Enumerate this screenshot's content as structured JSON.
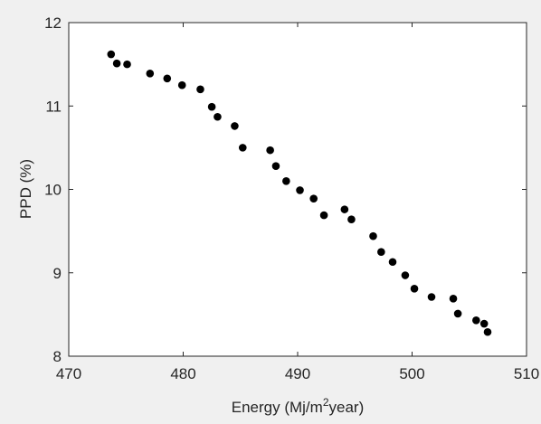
{
  "chart_data": {
    "type": "scatter",
    "title": "",
    "xlabel_main": "Energy (Mj/m",
    "xlabel_sup": "2",
    "xlabel_tail": "year)",
    "ylabel": "PPD (%)",
    "xlim": [
      470,
      510
    ],
    "ylim": [
      8,
      12
    ],
    "xticks": [
      470,
      480,
      490,
      500,
      510
    ],
    "yticks": [
      8,
      9,
      10,
      11,
      12
    ],
    "grid": false,
    "legend": "none",
    "marker_color": "#000000",
    "points": [
      {
        "x": 473.7,
        "y": 11.62
      },
      {
        "x": 474.2,
        "y": 11.51
      },
      {
        "x": 475.1,
        "y": 11.5
      },
      {
        "x": 477.1,
        "y": 11.39
      },
      {
        "x": 478.6,
        "y": 11.33
      },
      {
        "x": 479.9,
        "y": 11.25
      },
      {
        "x": 481.5,
        "y": 11.2
      },
      {
        "x": 482.5,
        "y": 10.99
      },
      {
        "x": 483.0,
        "y": 10.87
      },
      {
        "x": 484.5,
        "y": 10.76
      },
      {
        "x": 485.2,
        "y": 10.5
      },
      {
        "x": 487.6,
        "y": 10.47
      },
      {
        "x": 488.1,
        "y": 10.28
      },
      {
        "x": 489.0,
        "y": 10.1
      },
      {
        "x": 490.2,
        "y": 9.99
      },
      {
        "x": 491.4,
        "y": 9.89
      },
      {
        "x": 492.3,
        "y": 9.69
      },
      {
        "x": 494.1,
        "y": 9.76
      },
      {
        "x": 494.7,
        "y": 9.64
      },
      {
        "x": 496.6,
        "y": 9.44
      },
      {
        "x": 497.3,
        "y": 9.25
      },
      {
        "x": 498.3,
        "y": 9.13
      },
      {
        "x": 499.4,
        "y": 8.97
      },
      {
        "x": 500.2,
        "y": 8.81
      },
      {
        "x": 501.7,
        "y": 8.71
      },
      {
        "x": 503.6,
        "y": 8.69
      },
      {
        "x": 504.0,
        "y": 8.51
      },
      {
        "x": 505.6,
        "y": 8.43
      },
      {
        "x": 506.3,
        "y": 8.39
      },
      {
        "x": 506.6,
        "y": 8.29
      }
    ]
  }
}
